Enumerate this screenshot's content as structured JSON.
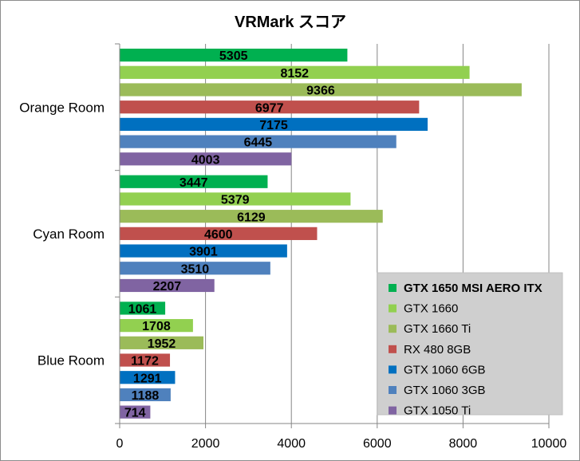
{
  "chart_data": {
    "type": "bar",
    "orientation": "horizontal",
    "title": "VRMark スコア",
    "categories": [
      "Orange Room",
      "Cyan Room",
      "Blue Room"
    ],
    "xlim": [
      0,
      10000
    ],
    "xticks": [
      "0",
      "2000",
      "4000",
      "6000",
      "8000",
      "10000"
    ],
    "grid": true,
    "legend_position": "bottom-right",
    "series": [
      {
        "name": "GTX 1650 MSI AERO ITX",
        "color": "#00b050",
        "values": [
          5305,
          3447,
          1061
        ],
        "bold": true
      },
      {
        "name": "GTX 1660",
        "color": "#92d050",
        "values": [
          8152,
          5379,
          1708
        ]
      },
      {
        "name": "GTX 1660 Ti",
        "color": "#9bbb59",
        "values": [
          9366,
          6129,
          1952
        ]
      },
      {
        "name": "RX 480 8GB",
        "color": "#c0504d",
        "values": [
          6977,
          4600,
          1172
        ]
      },
      {
        "name": "GTX 1060 6GB",
        "color": "#0070c0",
        "values": [
          7175,
          3901,
          1291
        ]
      },
      {
        "name": "GTX 1060 3GB",
        "color": "#4f81bd",
        "values": [
          6445,
          3510,
          1188
        ]
      },
      {
        "name": "GTX 1050 Ti",
        "color": "#8064a2",
        "values": [
          4003,
          2207,
          714
        ]
      }
    ]
  }
}
